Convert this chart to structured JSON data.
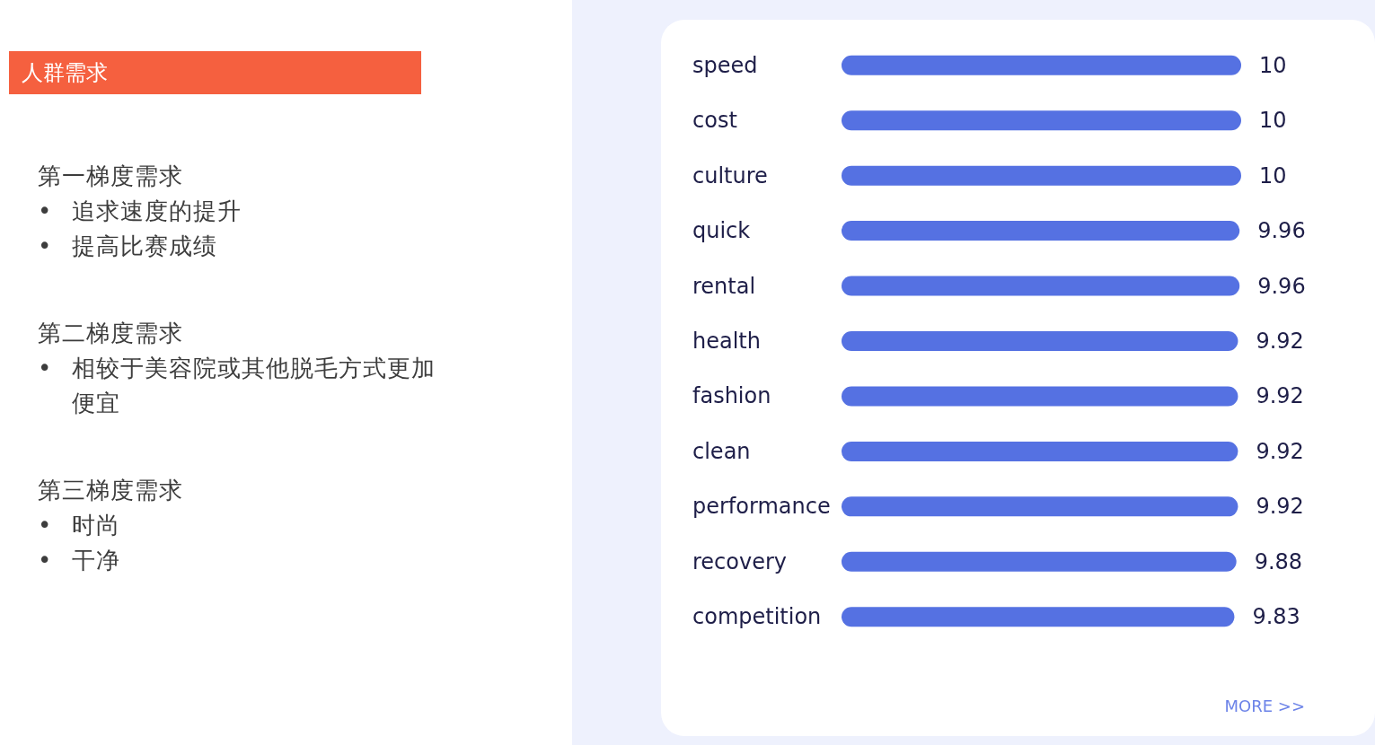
{
  "chart_data": [
    {
      "type": "other",
      "title": "人群需求",
      "annotations": [
        "第一梯度需求\n• 追求速度的提升\n• 提高比赛成绩",
        "第二梯度需求\n• 相较于美容院或其他脱毛方式更加便宜",
        "第三梯度需求\n• 时尚\n• 干净"
      ]
    },
    {
      "type": "bar",
      "orientation": "horizontal",
      "categories": [
        "speed",
        "cost",
        "culture",
        "quick",
        "rental",
        "health",
        "fashion",
        "clean",
        "performance",
        "recovery",
        "competition"
      ],
      "values": [
        10,
        10,
        10,
        9.96,
        9.96,
        9.92,
        9.92,
        9.92,
        9.92,
        9.88,
        9.83
      ],
      "color": "#5571e2",
      "data_labels": true,
      "tick_labels": "y",
      "annotations": [
        "MORE >>"
      ]
    }
  ]
}
